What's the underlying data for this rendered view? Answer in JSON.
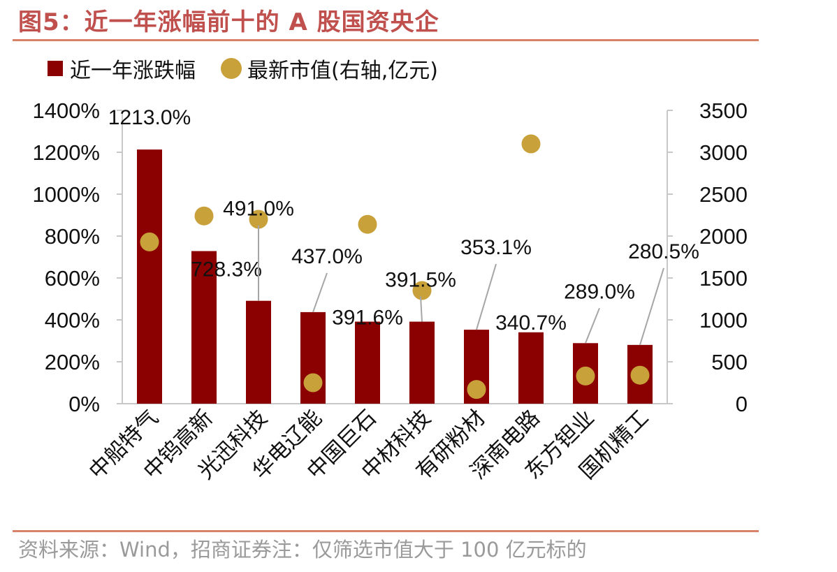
{
  "title": "图5：近一年涨幅前十的 A 股国资央企",
  "legend": {
    "bar_label": "近一年涨跌幅",
    "dot_label": "最新市值(右轴,亿元)"
  },
  "source": "资料来源：Wind，招商证券注：仅筛选市值大于 100 亿元标的",
  "colors": {
    "bar": "#8b0000",
    "dot": "#c9a13b",
    "title": "#c0504d",
    "rule": "#d9826a",
    "axis": "#c8c8c8",
    "leader": "#a6a6a6"
  },
  "chart_data": {
    "type": "bar",
    "categories": [
      "中船特气",
      "中钨高新",
      "光迅科技",
      "华电辽能",
      "中国巨石",
      "中材科技",
      "有研粉材",
      "深南电路",
      "东方钽业",
      "国机精工"
    ],
    "series": [
      {
        "name": "近一年涨跌幅",
        "type": "bar",
        "axis": "left",
        "values": [
          1213.0,
          728.3,
          491.0,
          437.0,
          391.6,
          391.5,
          353.1,
          340.7,
          289.0,
          280.5
        ],
        "labels": [
          "1213.0%",
          "728.3%",
          "491.0%",
          "437.0%",
          "391.6%",
          "391.5%",
          "353.1%",
          "340.7%",
          "289.0%",
          "280.5%"
        ]
      },
      {
        "name": "最新市值(右轴,亿元)",
        "type": "scatter",
        "axis": "right",
        "values": [
          1930,
          2240,
          2200,
          250,
          2140,
          1350,
          170,
          3100,
          330,
          340
        ]
      }
    ],
    "y_left": {
      "ylim": [
        0,
        1400
      ],
      "ticks": [
        "0%",
        "200%",
        "400%",
        "600%",
        "800%",
        "1000%",
        "1200%",
        "1400%"
      ]
    },
    "y_right": {
      "ylim": [
        0,
        3500
      ],
      "ticks": [
        "0",
        "500",
        "1000",
        "1500",
        "2000",
        "2500",
        "3000",
        "3500"
      ]
    },
    "grid": false,
    "legend_position": "top-left"
  }
}
